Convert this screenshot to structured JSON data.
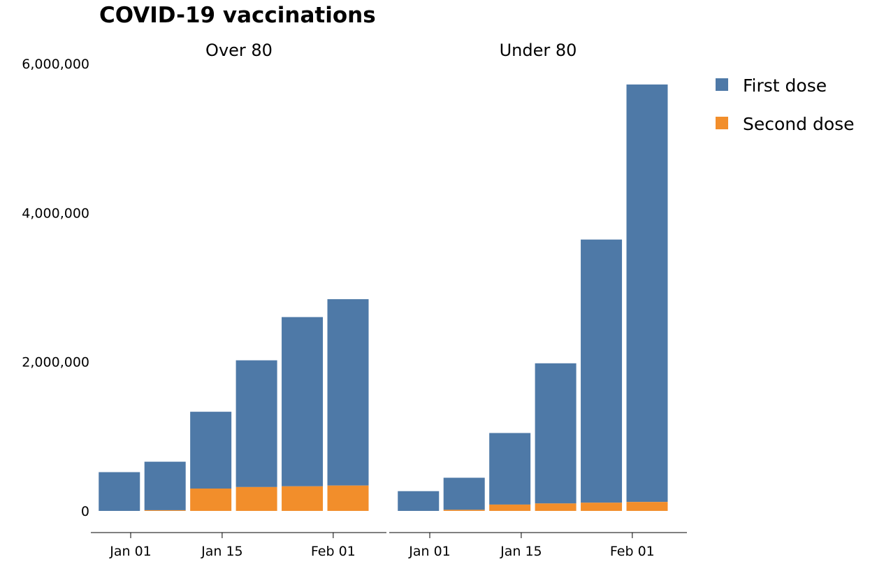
{
  "chart_data": {
    "type": "bar",
    "stacked": true,
    "title": "COVID-19 vaccinations",
    "y_ticks": [
      "0",
      "2,000,000",
      "4,000,000",
      "6,000,000"
    ],
    "y_tick_values": [
      0,
      2000000,
      4000000,
      6000000
    ],
    "x_tick_labels": [
      "Jan 01",
      "Jan 15",
      "Feb 01"
    ],
    "x_tick_dates": [
      "2021-01-01",
      "2021-01-15",
      "2021-02-01"
    ],
    "ylim": [
      0,
      6000000
    ],
    "legend_position": "right",
    "series": [
      {
        "name": "First dose",
        "color": "#4e79a7"
      },
      {
        "name": "Second dose",
        "color": "#f28e2b"
      }
    ],
    "facets": [
      {
        "label": "Over 80",
        "x": [
          "2020-12-27",
          "2021-01-03",
          "2021-01-10",
          "2021-01-17",
          "2021-01-24",
          "2021-01-31"
        ],
        "first_dose": [
          520000,
          650000,
          1030000,
          1700000,
          2270000,
          2500000
        ],
        "second_dose": [
          0,
          10000,
          300000,
          320000,
          330000,
          340000
        ]
      },
      {
        "label": "Under 80",
        "x": [
          "2020-12-27",
          "2021-01-03",
          "2021-01-10",
          "2021-01-17",
          "2021-01-24",
          "2021-01-31"
        ],
        "first_dose": [
          265000,
          430000,
          960000,
          1880000,
          3530000,
          5600000
        ],
        "second_dose": [
          0,
          15000,
          85000,
          100000,
          110000,
          120000
        ]
      }
    ]
  }
}
